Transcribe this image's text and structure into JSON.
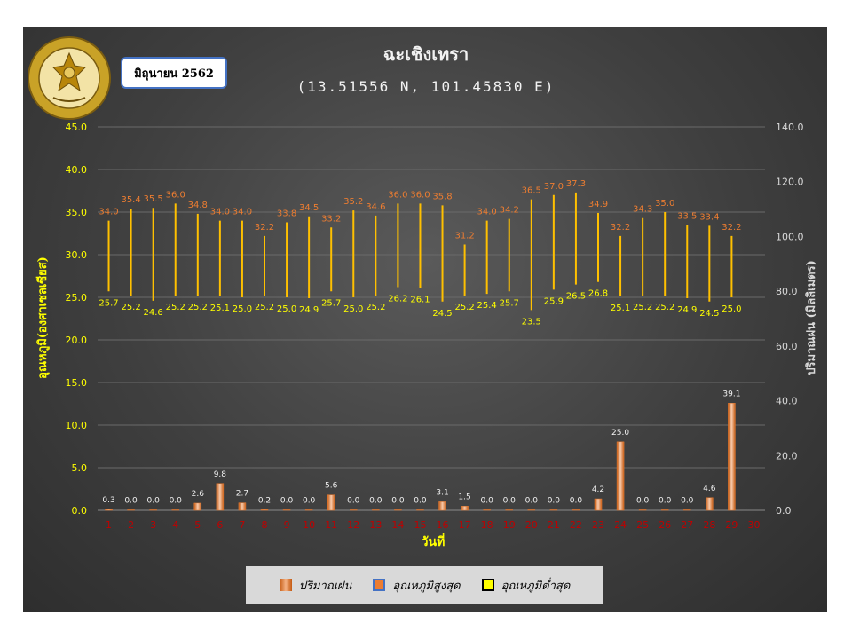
{
  "header": {
    "month_label": "มิถุนายน 2562"
  },
  "legend": {
    "rain": "ปริมาณฝน",
    "max": "อุณหภูมิสูงสุด",
    "min": "อุณหภูมิต่ำสุด"
  },
  "colors": {
    "rain_bar": "#ed7d31",
    "max_label": "#ed7d31",
    "range_line": "#ffc000",
    "axis_text": "#ffff00",
    "rain_axis_text": "#d9d9d9",
    "day_label": "#c00000"
  },
  "chart_data": {
    "type": "bar",
    "title": "ฉะเชิงเทรา",
    "subtitle": "(13.51556 N, 101.45830 E)",
    "xlabel": "วันที่",
    "ylabel_left": "อุณหภูมิ(องศาเซลเซียส)",
    "ylabel_right": "ปริมาณฝน (มิลลิเมตร)",
    "ylim_left": [
      0,
      45
    ],
    "ylim_right": [
      0,
      140
    ],
    "yticks_left": [
      "0.0",
      "5.0",
      "10.0",
      "15.0",
      "20.0",
      "25.0",
      "30.0",
      "35.0",
      "40.0",
      "45.0"
    ],
    "yticks_right": [
      "0.0",
      "20.0",
      "40.0",
      "60.0",
      "80.0",
      "100.0",
      "120.0",
      "140.0"
    ],
    "categories": [
      "1",
      "2",
      "3",
      "4",
      "5",
      "6",
      "7",
      "8",
      "9",
      "10",
      "11",
      "12",
      "13",
      "14",
      "15",
      "16",
      "17",
      "18",
      "19",
      "20",
      "21",
      "22",
      "23",
      "24",
      "25",
      "26",
      "27",
      "28",
      "29",
      "30"
    ],
    "series": [
      {
        "name": "ปริมาณฝน",
        "axis": "right",
        "values": [
          0.3,
          0.0,
          0.0,
          0.0,
          2.6,
          9.8,
          2.7,
          0.2,
          0.0,
          0.0,
          5.6,
          0.0,
          0.0,
          0.0,
          0.0,
          3.1,
          1.5,
          0.0,
          0.0,
          0.0,
          0.0,
          0.0,
          4.2,
          25.0,
          0.0,
          0.0,
          0.0,
          4.6,
          39.1,
          null
        ],
        "labels": [
          "0.3",
          "0.0",
          "0.0",
          "0.0",
          "2.6",
          "9.8",
          "2.7",
          "0.2",
          "0.0",
          "0.0",
          "5.6",
          "0.0",
          "0.0",
          "0.0",
          "0.0",
          "3.1",
          "1.5",
          "0.0",
          "0.0",
          "0.0",
          "0.0",
          "0.0",
          "4.2",
          "25.0",
          "0.0",
          "0.0",
          "0.0",
          "4.6",
          "39.1",
          ""
        ]
      },
      {
        "name": "อุณหภูมิสูงสุด",
        "axis": "left",
        "values": [
          34.0,
          35.4,
          35.5,
          36.0,
          34.8,
          34.0,
          34.0,
          32.2,
          33.8,
          34.5,
          33.2,
          35.2,
          34.6,
          36.0,
          36.0,
          35.8,
          31.2,
          34.0,
          34.2,
          36.5,
          37.0,
          37.3,
          34.9,
          32.2,
          34.3,
          35.0,
          33.5,
          33.4,
          32.2,
          null
        ],
        "labels": [
          "34.0",
          "35.4",
          "35.5",
          "36.0",
          "34.8",
          "34.0",
          "34.0",
          "32.2",
          "33.8",
          "34.5",
          "33.2",
          "35.2",
          "34.6",
          "36.0",
          "36.0",
          "35.8",
          "31.2",
          "34.0",
          "34.2",
          "36.5",
          "37.0",
          "37.3",
          "34.9",
          "32.2",
          "34.3",
          "35.0",
          "33.5",
          "33.4",
          "32.2",
          ""
        ]
      },
      {
        "name": "อุณหภูมิต่ำสุด",
        "axis": "left",
        "values": [
          25.7,
          25.2,
          24.6,
          25.2,
          25.2,
          25.1,
          25.0,
          25.2,
          25.0,
          24.9,
          25.7,
          25.0,
          25.2,
          26.2,
          26.1,
          24.5,
          25.2,
          25.4,
          25.7,
          23.5,
          25.9,
          26.5,
          26.8,
          25.1,
          25.2,
          25.2,
          24.9,
          24.5,
          25.0,
          null
        ],
        "labels": [
          "25.7",
          "25.2",
          "24.6",
          "25.2",
          "25.2",
          "25.1",
          "25.0",
          "25.2",
          "25.0",
          "24.9",
          "25.7",
          "25.0",
          "25.2",
          "26.2",
          "26.1",
          "24.5",
          "25.2",
          "25.4",
          "25.7",
          "23.5",
          "25.9",
          "26.5",
          "26.8",
          "25.1",
          "25.2",
          "25.2",
          "24.9",
          "24.5",
          "25.0",
          ""
        ]
      }
    ],
    "grid": true,
    "legend_position": "bottom"
  }
}
